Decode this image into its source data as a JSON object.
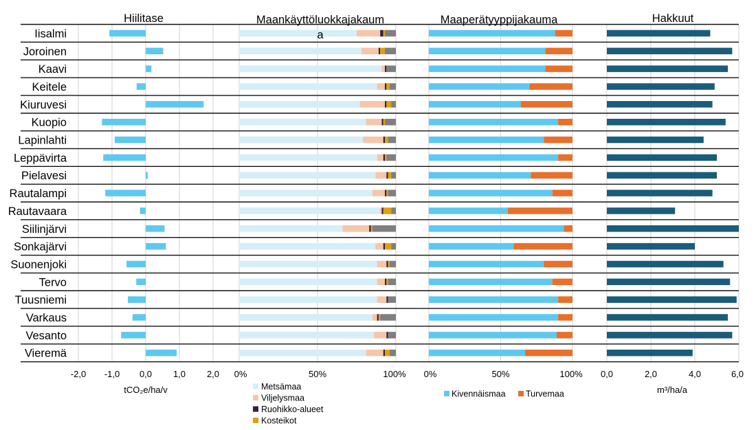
{
  "colors": {
    "carbon_bar": "#5ec8f0",
    "forest": "#d5eef8",
    "agri": "#f5c6aa",
    "grass": "#3a1f3d",
    "wetland": "#e0a010",
    "other": "#7f7f7f",
    "mineral": "#5ec8f0",
    "peat": "#e8702a",
    "harvest": "#1a5c7a",
    "grid": "#d9d9d9",
    "separator": "#111111"
  },
  "municipalities": [
    "Iisalmi",
    "Joroinen",
    "Kaavi",
    "Keitele",
    "Kiuruvesi",
    "Kuopio",
    "Lapinlahti",
    "Leppävirta",
    "Pielavesi",
    "Rautalampi",
    "Rautavaara",
    "Siilinjärvi",
    "Sonkajärvi",
    "Suonenjoki",
    "Tervo",
    "Tuusniemi",
    "Varkaus",
    "Vesanto",
    "Vieremä"
  ],
  "legend": {
    "landuse": [
      "Metsämaa",
      "Viljelysmaa",
      "Ruohikko-alueet",
      "Kosteikot"
    ],
    "soil": [
      "Kivennäismaa",
      "Turvemaa"
    ]
  },
  "chart_data": [
    {
      "type": "bar",
      "orientation": "horizontal",
      "title": "Hiilitase",
      "xlabel": "tCO₂e/ha/v",
      "xlim": [
        -2.0,
        2.0
      ],
      "ticks": [
        "-2,0",
        "-1,0",
        "0,0",
        "1,0",
        "2,0"
      ],
      "grid": true,
      "categories": [
        "Iisalmi",
        "Joroinen",
        "Kaavi",
        "Keitele",
        "Kiuruvesi",
        "Kuopio",
        "Lapinlahti",
        "Leppävirta",
        "Pielavesi",
        "Rautalampi",
        "Rautavaara",
        "Siilinjärvi",
        "Sonkajärvi",
        "Suonenjoki",
        "Tervo",
        "Tuusniemi",
        "Varkaus",
        "Vesanto",
        "Vieremä"
      ],
      "values": [
        -1.08,
        0.52,
        0.17,
        -0.27,
        1.72,
        -1.3,
        -0.92,
        -1.26,
        0.06,
        -1.2,
        -0.17,
        0.56,
        0.6,
        -0.57,
        -0.28,
        -0.53,
        -0.39,
        -0.73,
        0.92
      ]
    },
    {
      "type": "bar",
      "orientation": "horizontal",
      "stacked": "percent",
      "title": "Maankäyttöluokkajakaum a",
      "title_lines": [
        "Maankäyttöluokkajakaum",
        "a"
      ],
      "xlim": [
        0,
        100
      ],
      "ticks": [
        "0%",
        "50%",
        "100%"
      ],
      "categories": [
        "Iisalmi",
        "Joroinen",
        "Kaavi",
        "Keitele",
        "Kiuruvesi",
        "Kuopio",
        "Lapinlahti",
        "Leppävirta",
        "Pielavesi",
        "Rautalampi",
        "Rautavaara",
        "Siilinjärvi",
        "Sonkajärvi",
        "Suonenjoki",
        "Tervo",
        "Tuusniemi",
        "Varkaus",
        "Vesanto",
        "Vieremä"
      ],
      "series": [
        {
          "name": "Metsämaa",
          "values": [
            75,
            78,
            91,
            88,
            77,
            81,
            79,
            88,
            87,
            85,
            90,
            66,
            87,
            88,
            88,
            88,
            85,
            86,
            81
          ]
        },
        {
          "name": "Viljelysmaa",
          "values": [
            15,
            11,
            2,
            5,
            16,
            10,
            13,
            4,
            7,
            8,
            1,
            17,
            5,
            6,
            5,
            6,
            3,
            8,
            11
          ]
        },
        {
          "name": "Ruohikko-alueet",
          "values": [
            2,
            1,
            1,
            1,
            1,
            1,
            1,
            1,
            1,
            1,
            1,
            1,
            1,
            1,
            1,
            1,
            1,
            1,
            1
          ]
        },
        {
          "name": "Kosteikot",
          "values": [
            1,
            3,
            0,
            2,
            3,
            1,
            2,
            1,
            2,
            1,
            5,
            1,
            4,
            1,
            1,
            0,
            1,
            0,
            3
          ]
        },
        {
          "name": "",
          "values": [
            7,
            7,
            6,
            4,
            3,
            7,
            5,
            6,
            3,
            5,
            3,
            15,
            3,
            4,
            5,
            5,
            10,
            5,
            4
          ]
        }
      ]
    },
    {
      "type": "bar",
      "orientation": "horizontal",
      "stacked": "percent",
      "title": "Maaperätyyppijakauma",
      "xlim": [
        0,
        100
      ],
      "ticks": [
        "0%",
        "50%",
        "100%"
      ],
      "categories": [
        "Iisalmi",
        "Joroinen",
        "Kaavi",
        "Keitele",
        "Kiuruvesi",
        "Kuopio",
        "Lapinlahti",
        "Leppävirta",
        "Pielavesi",
        "Rautalampi",
        "Rautavaara",
        "Siilinjärvi",
        "Sonkajärvi",
        "Suonenjoki",
        "Tervo",
        "Tuusniemi",
        "Varkaus",
        "Vesanto",
        "Vieremä"
      ],
      "series": [
        {
          "name": "Kivennäismaa",
          "values": [
            88,
            81,
            81,
            70,
            64,
            90,
            80,
            90,
            71,
            86,
            55,
            94,
            59,
            80,
            86,
            90,
            90,
            89,
            67
          ]
        },
        {
          "name": "Turvemaa",
          "values": [
            12,
            19,
            19,
            30,
            36,
            10,
            20,
            10,
            29,
            14,
            45,
            6,
            41,
            20,
            14,
            10,
            10,
            11,
            33
          ]
        }
      ]
    },
    {
      "type": "bar",
      "orientation": "horizontal",
      "title": "Hakkuut",
      "xlabel": "m³/ha/a",
      "xlim": [
        0,
        6.0
      ],
      "ticks": [
        "0,0",
        "2,0",
        "4,0",
        "6,0"
      ],
      "grid": true,
      "categories": [
        "Iisalmi",
        "Joroinen",
        "Kaavi",
        "Keitele",
        "Kiuruvesi",
        "Kuopio",
        "Lapinlahti",
        "Leppävirta",
        "Pielavesi",
        "Rautalampi",
        "Rautavaara",
        "Siilinjärvi",
        "Sonkajärvi",
        "Suonenjoki",
        "Tervo",
        "Tuusniemi",
        "Varkaus",
        "Vesanto",
        "Vieremä"
      ],
      "values": [
        4.7,
        5.7,
        5.5,
        4.9,
        4.8,
        5.4,
        4.4,
        5.0,
        5.0,
        4.8,
        3.1,
        6.0,
        4.0,
        5.3,
        5.6,
        5.9,
        5.5,
        5.7,
        3.9
      ]
    }
  ]
}
